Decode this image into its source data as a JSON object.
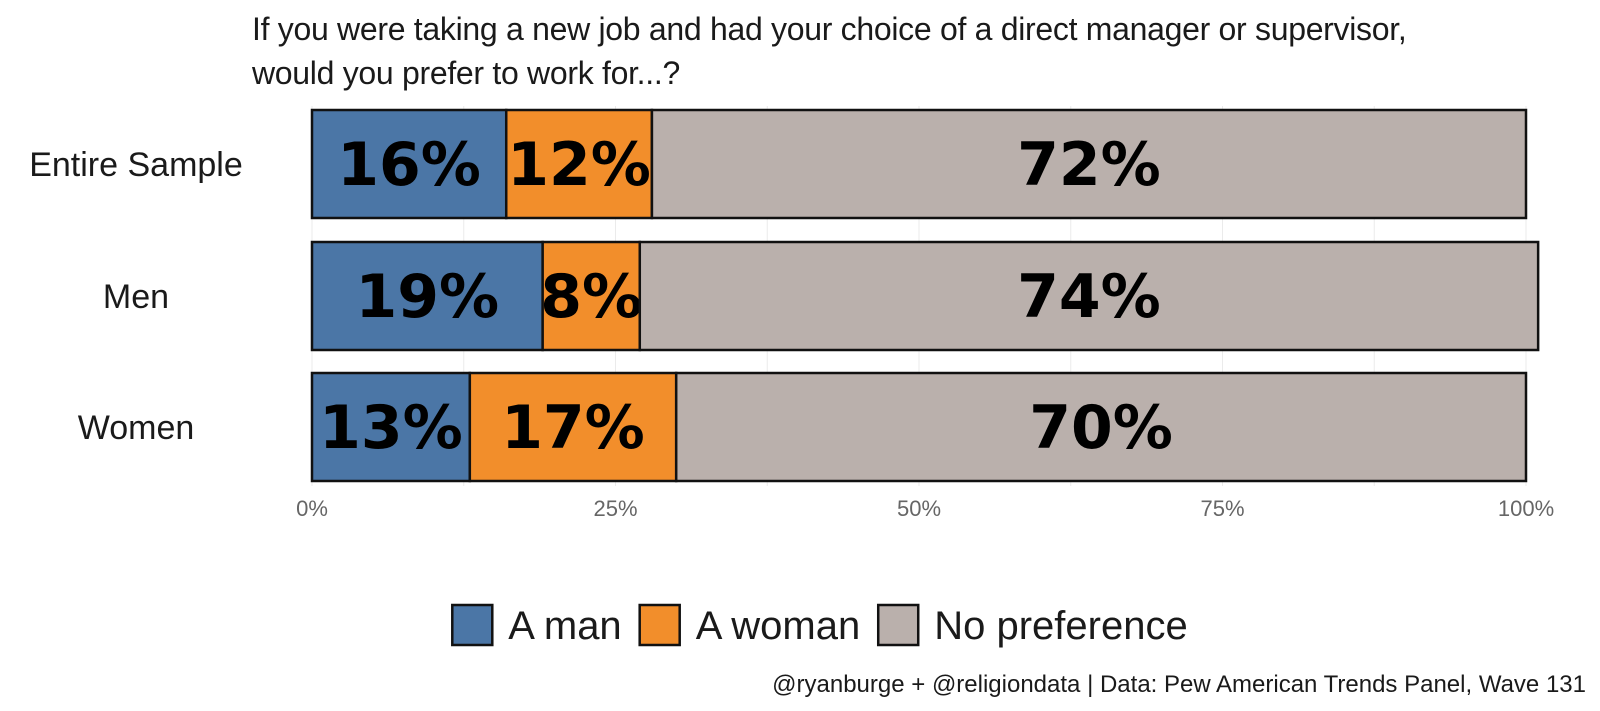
{
  "chart_data": {
    "type": "bar",
    "orientation": "horizontal",
    "stacked": true,
    "title_lines": [
      "If you were taking a new job and had your choice of a direct manager or supervisor,",
      "would you prefer to work for...?"
    ],
    "categories": [
      "Entire Sample",
      "Men",
      "Women"
    ],
    "series": [
      {
        "name": "A man",
        "color": "#4b76a6",
        "values": [
          16,
          19,
          13
        ],
        "labels": [
          "16%",
          "19%",
          "13%"
        ]
      },
      {
        "name": "A woman",
        "color": "#f28e2b",
        "values": [
          12,
          8,
          17
        ],
        "labels": [
          "12%",
          "8%",
          "17%"
        ]
      },
      {
        "name": "No preference",
        "color": "#bab0ac",
        "values": [
          72,
          74,
          70
        ],
        "labels": [
          "72%",
          "74%",
          "70%"
        ]
      }
    ],
    "xlim": [
      0,
      100
    ],
    "xticks": [
      0,
      25,
      50,
      75,
      100
    ],
    "xtick_labels": [
      "0%",
      "25%",
      "50%",
      "75%",
      "100%"
    ],
    "xlabel": "",
    "ylabel": "",
    "grid": true,
    "legend_position": "bottom",
    "caption": "@ryanburge + @religiondata | Data: Pew American Trends Panel, Wave 131"
  }
}
